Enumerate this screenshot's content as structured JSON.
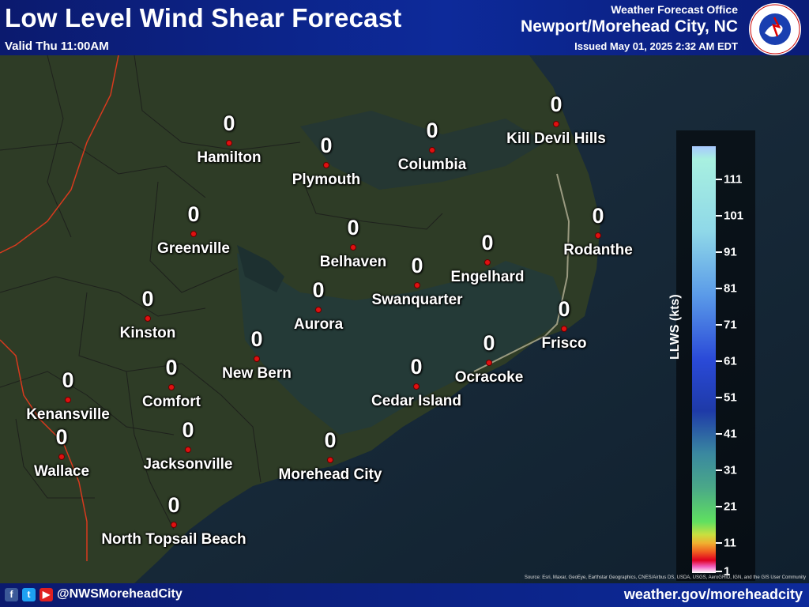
{
  "header": {
    "title": "Low Level Wind Shear Forecast",
    "valid": "Valid Thu 11:00AM",
    "office_label": "Weather Forecast Office",
    "office_name": "Newport/Morehead City, NC",
    "issued": "Issued May 01, 2025 2:32 AM EDT",
    "logo_text": "NATIONAL WEATHER SERVICE"
  },
  "cities": [
    {
      "name": "Hamilton",
      "value": "0"
    },
    {
      "name": "Plymouth",
      "value": "0"
    },
    {
      "name": "Columbia",
      "value": "0"
    },
    {
      "name": "Kill Devil Hills",
      "value": "0"
    },
    {
      "name": "Greenville",
      "value": "0"
    },
    {
      "name": "Belhaven",
      "value": "0"
    },
    {
      "name": "Engelhard",
      "value": "0"
    },
    {
      "name": "Rodanthe",
      "value": "0"
    },
    {
      "name": "Swanquarter",
      "value": "0"
    },
    {
      "name": "Kinston",
      "value": "0"
    },
    {
      "name": "Aurora",
      "value": "0"
    },
    {
      "name": "Frisco",
      "value": "0"
    },
    {
      "name": "New Bern",
      "value": "0"
    },
    {
      "name": "Ocracoke",
      "value": "0"
    },
    {
      "name": "Kenansville",
      "value": "0"
    },
    {
      "name": "Comfort",
      "value": "0"
    },
    {
      "name": "Cedar Island",
      "value": "0"
    },
    {
      "name": "Wallace",
      "value": "0"
    },
    {
      "name": "Jacksonville",
      "value": "0"
    },
    {
      "name": "Morehead City",
      "value": "0"
    },
    {
      "name": "North Topsail Beach",
      "value": "0"
    }
  ],
  "legend": {
    "title": "LLWS (kts)",
    "ticks": [
      "111",
      "101",
      "91",
      "81",
      "71",
      "61",
      "51",
      "41",
      "31",
      "21",
      "11",
      "1"
    ]
  },
  "source": "Source: Esri, Maxar, GeoEye, Earthstar Geographics, CNES/Airbus DS, USDA, USGS, AeroGRID, IGN, and the GIS User Community",
  "footer": {
    "handle": "@NWSMoreheadCity",
    "url": "weather.gov/moreheadcity"
  }
}
